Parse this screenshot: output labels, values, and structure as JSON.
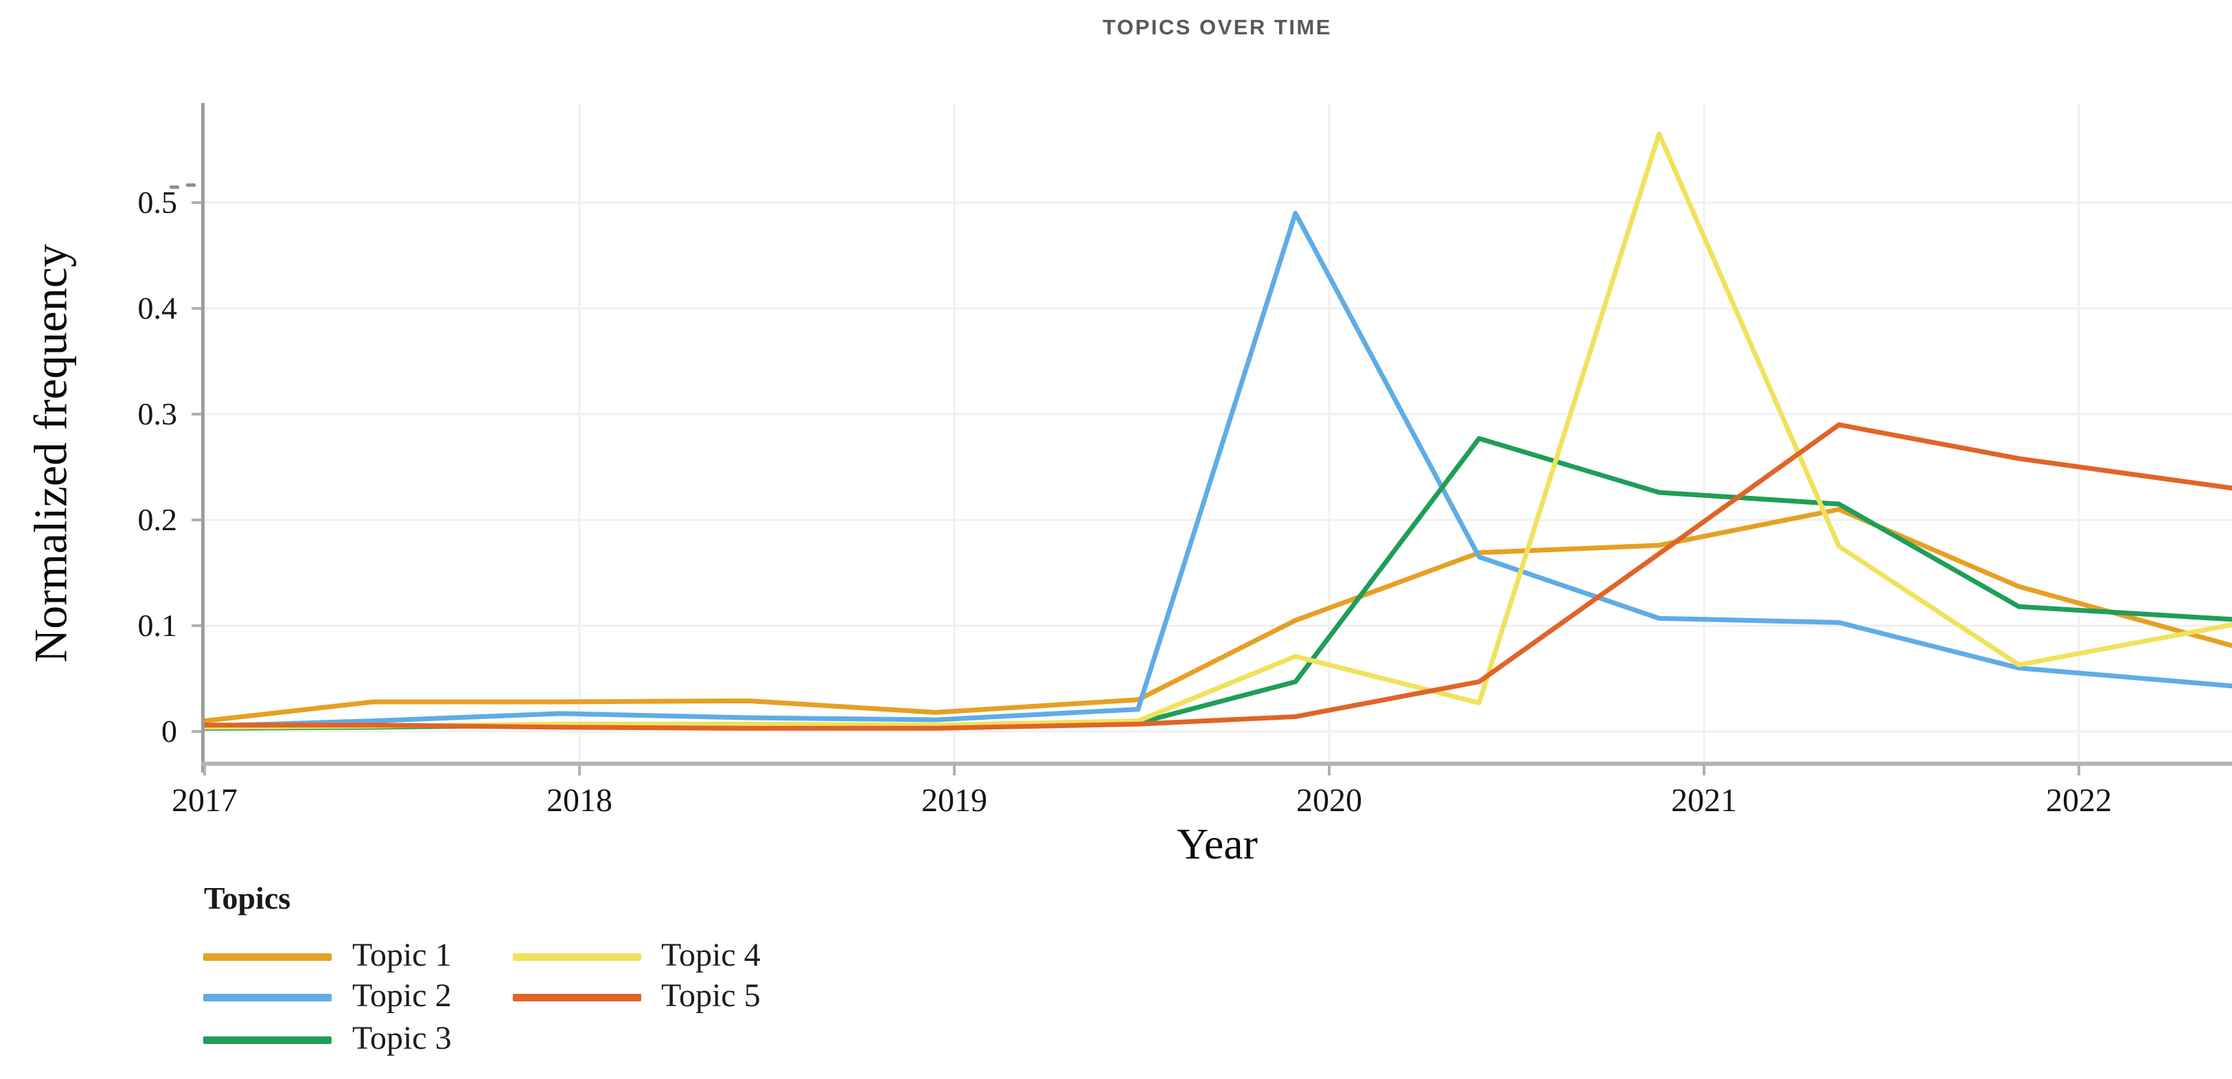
{
  "title": "TOPICS OVER TIME",
  "axes": {
    "x_label": "Year",
    "y_label": "Normalized frequency",
    "x_ticks": [
      2017,
      2018,
      2019,
      2020,
      2021,
      2022
    ],
    "y_ticks": [
      {
        "value": 0.0,
        "label": "0"
      },
      {
        "value": 0.1,
        "label": "0.1"
      },
      {
        "value": 0.2,
        "label": "0.2"
      },
      {
        "value": 0.3,
        "label": "0.3"
      },
      {
        "value": 0.4,
        "label": "0.4"
      },
      {
        "value": 0.5,
        "label": "0.5"
      }
    ]
  },
  "legend": {
    "header": "Topics",
    "items": [
      {
        "label": "Topic 1",
        "color": "#E6A024"
      },
      {
        "label": "Topic 2",
        "color": "#5FACE6"
      },
      {
        "label": "Topic 3",
        "color": "#1F9E58"
      },
      {
        "label": "Topic 4",
        "color": "#F0E25C"
      },
      {
        "label": "Topic 5",
        "color": "#E06428"
      }
    ]
  },
  "chart_data": {
    "type": "line",
    "title": "TOPICS OVER TIME",
    "xlabel": "Year",
    "ylabel": "Normalized frequency",
    "xlim": [
      2016.99,
      2022.41
    ],
    "ylim": [
      -0.033,
      0.595
    ],
    "grid": true,
    "legend_position": "bottom-left",
    "x": [
      2017.0,
      2017.45,
      2017.95,
      2018.45,
      2018.95,
      2019.49,
      2019.91,
      2020.4,
      2020.88,
      2021.36,
      2021.84,
      2022.41
    ],
    "series": [
      {
        "name": "Topic 1",
        "color": "#E6A024",
        "values": [
          0.01,
          0.028,
          0.028,
          0.029,
          0.018,
          0.03,
          0.105,
          0.169,
          0.176,
          0.21,
          0.137,
          0.081
        ]
      },
      {
        "name": "Topic 2",
        "color": "#5FACE6",
        "values": [
          0.005,
          0.01,
          0.017,
          0.013,
          0.011,
          0.021,
          0.49,
          0.165,
          0.107,
          0.103,
          0.06,
          0.043
        ]
      },
      {
        "name": "Topic 3",
        "color": "#1F9E58",
        "values": [
          0.003,
          0.004,
          0.006,
          0.005,
          0.004,
          0.008,
          0.047,
          0.277,
          0.226,
          0.215,
          0.118,
          0.106
        ]
      },
      {
        "name": "Topic 4",
        "color": "#F0E25C",
        "values": [
          0.004,
          0.005,
          0.007,
          0.007,
          0.006,
          0.01,
          0.071,
          0.027,
          0.565,
          0.175,
          0.063,
          0.101
        ]
      },
      {
        "name": "Topic 5",
        "color": "#E06428",
        "values": [
          0.006,
          0.006,
          0.004,
          0.003,
          0.003,
          0.007,
          0.014,
          0.047,
          0.168,
          0.29,
          0.258,
          0.23
        ]
      }
    ]
  }
}
